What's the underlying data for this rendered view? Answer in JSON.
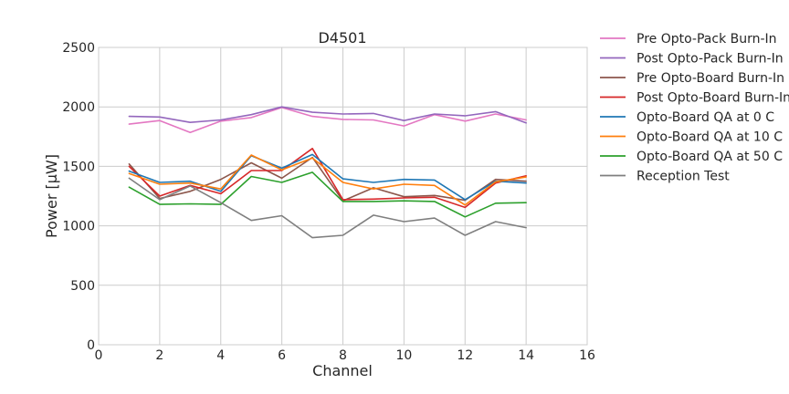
{
  "chart_data": {
    "type": "line",
    "title": "D4501",
    "xlabel": "Channel",
    "ylabel": "Power [μW]",
    "xlim": [
      0,
      16
    ],
    "ylim": [
      0,
      2500
    ],
    "xticks": [
      "0",
      "2",
      "4",
      "6",
      "8",
      "10",
      "12",
      "14",
      "16"
    ],
    "yticks": [
      "0",
      "500",
      "1000",
      "1500",
      "2000",
      "2500"
    ],
    "grid": true,
    "legend_position": "outside-right",
    "x": [
      1,
      2,
      3,
      4,
      5,
      6,
      7,
      8,
      9,
      10,
      11,
      12,
      13,
      14
    ],
    "series": [
      {
        "name": "Pre Opto-Pack Burn-In",
        "color": "#e377c2",
        "values": [
          1855,
          1885,
          1785,
          1880,
          1910,
          1995,
          1920,
          1895,
          1890,
          1840,
          1935,
          1880,
          1940,
          1890
        ]
      },
      {
        "name": "Post Opto-Pack Burn-In",
        "color": "#9467bd",
        "values": [
          1920,
          1915,
          1870,
          1890,
          1935,
          2000,
          1955,
          1940,
          1945,
          1885,
          1940,
          1925,
          1960,
          1865
        ]
      },
      {
        "name": "Pre Opto-Board Burn-In",
        "color": "#8c564b",
        "values": [
          1520,
          1230,
          1290,
          1390,
          1530,
          1400,
          1575,
          1210,
          1320,
          1245,
          1255,
          1215,
          1390,
          1375
        ]
      },
      {
        "name": "Post Opto-Board Burn-In",
        "color": "#d62728",
        "values": [
          1500,
          1250,
          1340,
          1270,
          1465,
          1465,
          1650,
          1220,
          1225,
          1235,
          1240,
          1155,
          1360,
          1420
        ]
      },
      {
        "name": "Opto-Board QA at 0 C",
        "color": "#1f77b4",
        "values": [
          1460,
          1365,
          1375,
          1290,
          1590,
          1485,
          1600,
          1395,
          1365,
          1390,
          1385,
          1220,
          1375,
          1360
        ]
      },
      {
        "name": "Opto-Board QA at 10 C",
        "color": "#ff7f0e",
        "values": [
          1440,
          1350,
          1360,
          1310,
          1595,
          1470,
          1570,
          1365,
          1310,
          1350,
          1340,
          1175,
          1370,
          1410
        ]
      },
      {
        "name": "Opto-Board QA at 50 C",
        "color": "#2ca02c",
        "values": [
          1325,
          1180,
          1185,
          1180,
          1415,
          1365,
          1450,
          1205,
          1205,
          1210,
          1205,
          1075,
          1190,
          1195
        ]
      },
      {
        "name": "Reception Test",
        "color": "#7f7f7f",
        "values": [
          1400,
          1220,
          1335,
          1195,
          1045,
          1085,
          900,
          920,
          1090,
          1035,
          1065,
          920,
          1035,
          985
        ]
      }
    ]
  }
}
